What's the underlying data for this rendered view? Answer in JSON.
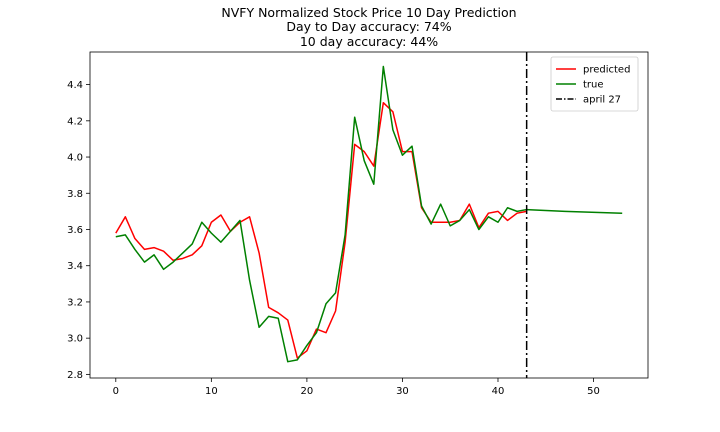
{
  "chart_data": {
    "type": "line",
    "title_lines": [
      "NVFY Normalized Stock Price 10 Day Prediction",
      "Day to Day accuracy: 74%",
      "10 day accuracy: 44%"
    ],
    "xlabel": "",
    "ylabel": "",
    "xlim": [
      -2.7,
      55.7
    ],
    "ylim": [
      2.78,
      4.58
    ],
    "xticks": [
      0,
      10,
      20,
      30,
      40,
      50
    ],
    "yticks": [
      2.8,
      3.0,
      3.2,
      3.4,
      3.6,
      3.8,
      4.0,
      4.2,
      4.4
    ],
    "grid": false,
    "legend_position": "top-right",
    "series": [
      {
        "name": "predicted",
        "color": "#ff0000",
        "linestyle": "solid",
        "x": [
          0,
          1,
          2,
          3,
          4,
          5,
          6,
          7,
          8,
          9,
          10,
          11,
          12,
          13,
          14,
          15,
          16,
          17,
          18,
          19,
          20,
          21,
          22,
          23,
          24,
          25,
          26,
          27,
          28,
          29,
          30,
          31,
          32,
          33,
          34,
          35,
          36,
          37,
          38,
          39,
          40,
          41,
          42,
          43
        ],
        "values": [
          3.58,
          3.67,
          3.55,
          3.49,
          3.5,
          3.48,
          3.43,
          3.44,
          3.46,
          3.51,
          3.64,
          3.68,
          3.59,
          3.64,
          3.67,
          3.47,
          3.17,
          3.14,
          3.1,
          2.89,
          2.93,
          3.05,
          3.03,
          3.15,
          3.53,
          4.07,
          4.03,
          3.95,
          4.3,
          4.25,
          4.03,
          4.03,
          3.72,
          3.64,
          3.64,
          3.64,
          3.65,
          3.74,
          3.61,
          3.69,
          3.7,
          3.65,
          3.69,
          3.7
        ]
      },
      {
        "name": "true",
        "color": "#008000",
        "linestyle": "solid",
        "x": [
          0,
          1,
          2,
          3,
          4,
          5,
          6,
          7,
          8,
          9,
          10,
          11,
          12,
          13,
          14,
          15,
          16,
          17,
          18,
          19,
          20,
          21,
          22,
          23,
          24,
          25,
          26,
          27,
          28,
          29,
          30,
          31,
          32,
          33,
          34,
          35,
          36,
          37,
          38,
          39,
          40,
          41,
          42,
          43,
          47,
          53
        ],
        "values": [
          3.56,
          3.57,
          3.49,
          3.42,
          3.46,
          3.38,
          3.42,
          3.47,
          3.52,
          3.64,
          3.58,
          3.53,
          3.59,
          3.65,
          3.32,
          3.06,
          3.12,
          3.11,
          2.87,
          2.88,
          2.96,
          3.03,
          3.19,
          3.25,
          3.57,
          4.22,
          3.98,
          3.85,
          4.5,
          4.15,
          4.01,
          4.06,
          3.73,
          3.63,
          3.74,
          3.62,
          3.65,
          3.71,
          3.6,
          3.67,
          3.64,
          3.72,
          3.7,
          3.71,
          3.7,
          3.69
        ]
      }
    ],
    "vertical_lines": [
      {
        "name": "april 27",
        "x": 43,
        "color": "#000000",
        "linestyle": "dashdot"
      }
    ]
  }
}
